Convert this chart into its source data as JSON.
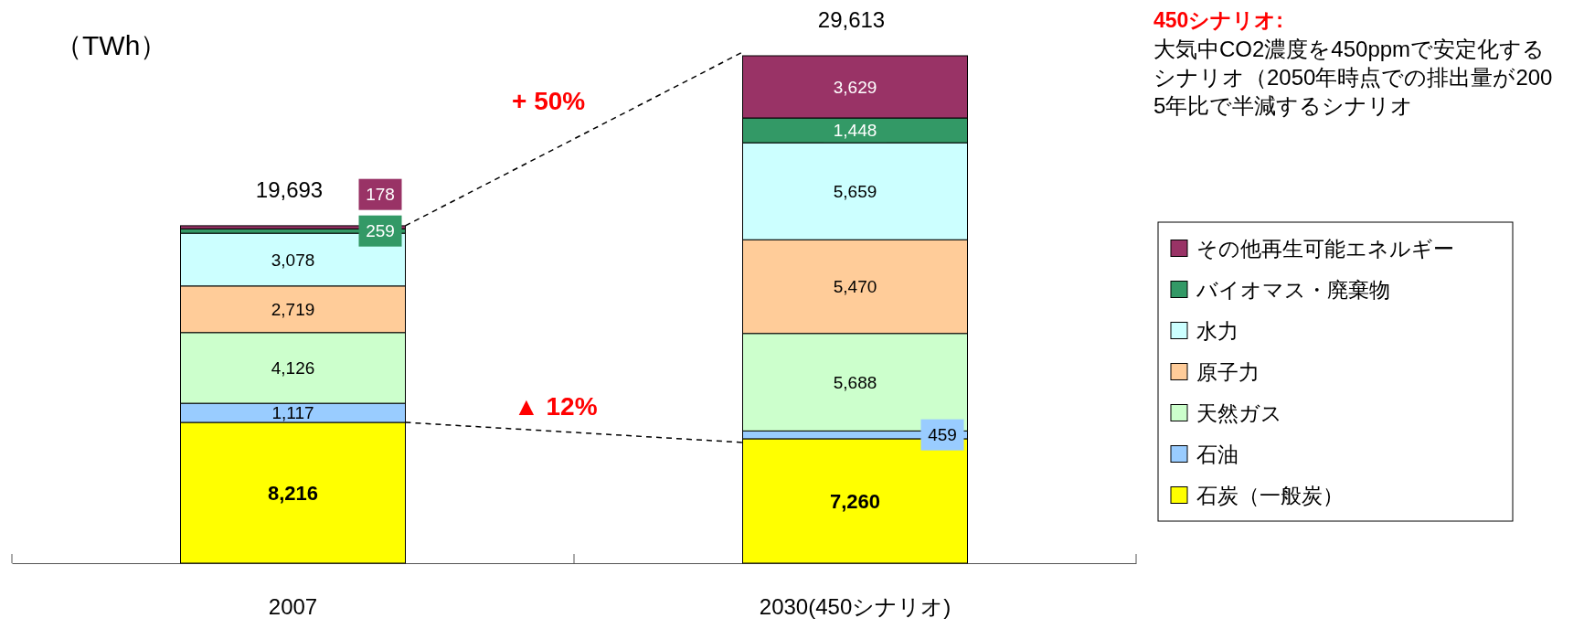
{
  "chart_data": {
    "type": "bar",
    "stacked": true,
    "ylabel": "（TWh）",
    "categories": [
      "2007",
      "2030(450シナリオ)"
    ],
    "series": [
      {
        "name": "石炭（一般炭）",
        "color": "#ffff00",
        "values": [
          8216,
          7260
        ],
        "value_labels": [
          "8,216",
          "7,260"
        ]
      },
      {
        "name": "石油",
        "color": "#99ccff",
        "values": [
          1117,
          459
        ],
        "value_labels": [
          "1,117",
          "459"
        ]
      },
      {
        "name": "天然ガス",
        "color": "#ccffcc",
        "values": [
          4126,
          5688
        ],
        "value_labels": [
          "4,126",
          "5,688"
        ]
      },
      {
        "name": "原子力",
        "color": "#ffcc99",
        "values": [
          2719,
          5470
        ],
        "value_labels": [
          "2,719",
          "5,470"
        ]
      },
      {
        "name": "水力",
        "color": "#ccffff",
        "values": [
          3078,
          5659
        ],
        "value_labels": [
          "3,078",
          "5,659"
        ]
      },
      {
        "name": "バイオマス・廃棄物",
        "color": "#339966",
        "values": [
          259,
          1448
        ],
        "value_labels": [
          "259",
          "1,448"
        ]
      },
      {
        "name": "その他再生可能エネルギー",
        "color": "#993366",
        "values": [
          178,
          3629
        ],
        "value_labels": [
          "178",
          "3,629"
        ]
      }
    ],
    "totals": [
      "19,693",
      "29,613"
    ],
    "tick_labels": "x",
    "legend": "right",
    "annotations": [
      "+ 50%",
      "▲ 12%",
      "450シナリオ:",
      "大気中CO2濃度を450ppmで安定化するシナリオ（2050年時点での排出量が2005年比で半減するシナリオ"
    ]
  }
}
